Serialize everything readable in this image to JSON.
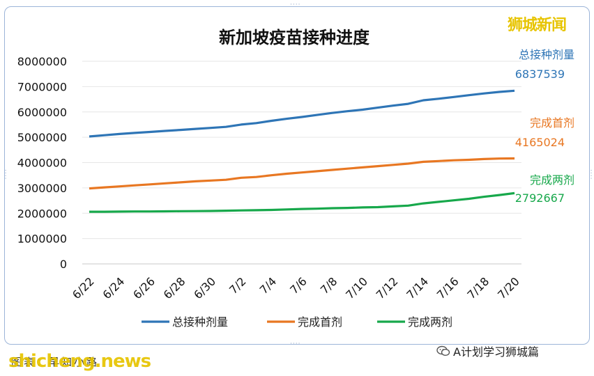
{
  "chart_data": {
    "type": "line",
    "title": "新加坡疫苗接种进度",
    "xlabel": "",
    "ylabel": "",
    "ylim": [
      0,
      8000000
    ],
    "yticks": [
      "0",
      "1000000",
      "2000000",
      "3000000",
      "4000000",
      "5000000",
      "6000000",
      "7000000",
      "8000000"
    ],
    "grid": true,
    "legend": "bottom",
    "x": [
      "6/22",
      "6/23",
      "6/24",
      "6/25",
      "6/26",
      "6/27",
      "6/28",
      "6/29",
      "6/30",
      "7/1",
      "7/2",
      "7/3",
      "7/4",
      "7/5",
      "7/6",
      "7/7",
      "7/8",
      "7/9",
      "7/10",
      "7/11",
      "7/12",
      "7/13",
      "7/14",
      "7/15",
      "7/16",
      "7/17",
      "7/18",
      "7/19",
      "7/20"
    ],
    "xtick_labels": [
      "6/22",
      "6/24",
      "6/26",
      "6/28",
      "6/30",
      "7/2",
      "7/4",
      "7/6",
      "7/8",
      "7/10",
      "7/12",
      "7/14",
      "7/16",
      "7/18",
      "7/20"
    ],
    "series": [
      {
        "name": "总接种剂量",
        "color": "#2e75b6",
        "end_label": "6837539",
        "values": [
          5030000,
          5080000,
          5130000,
          5170000,
          5210000,
          5250000,
          5290000,
          5330000,
          5370000,
          5410000,
          5500000,
          5560000,
          5650000,
          5730000,
          5800000,
          5880000,
          5960000,
          6030000,
          6090000,
          6170000,
          6250000,
          6320000,
          6460000,
          6520000,
          6590000,
          6660000,
          6730000,
          6790000,
          6837539
        ]
      },
      {
        "name": "完成首剂",
        "color": "#e87722",
        "end_label": "4165024",
        "values": [
          2980000,
          3020000,
          3060000,
          3100000,
          3140000,
          3180000,
          3220000,
          3260000,
          3290000,
          3320000,
          3400000,
          3430000,
          3500000,
          3560000,
          3610000,
          3660000,
          3710000,
          3760000,
          3810000,
          3860000,
          3910000,
          3960000,
          4030000,
          4060000,
          4090000,
          4110000,
          4140000,
          4160000,
          4165024
        ]
      },
      {
        "name": "完成两剂",
        "color": "#17a84b",
        "end_label": "2792667",
        "values": [
          2060000,
          2060000,
          2065000,
          2070000,
          2070000,
          2075000,
          2080000,
          2085000,
          2090000,
          2100000,
          2110000,
          2120000,
          2130000,
          2150000,
          2170000,
          2180000,
          2200000,
          2210000,
          2230000,
          2240000,
          2270000,
          2300000,
          2390000,
          2450000,
          2510000,
          2570000,
          2650000,
          2720000,
          2792667
        ]
      }
    ]
  },
  "watermark_top": "狮城新闻",
  "watermark_bottom": "shicheng.news",
  "source_note": "图表：早知小路",
  "wechat_tag": "A计划学习狮城篇",
  "icons": {
    "wechat": "wechat-icon"
  }
}
